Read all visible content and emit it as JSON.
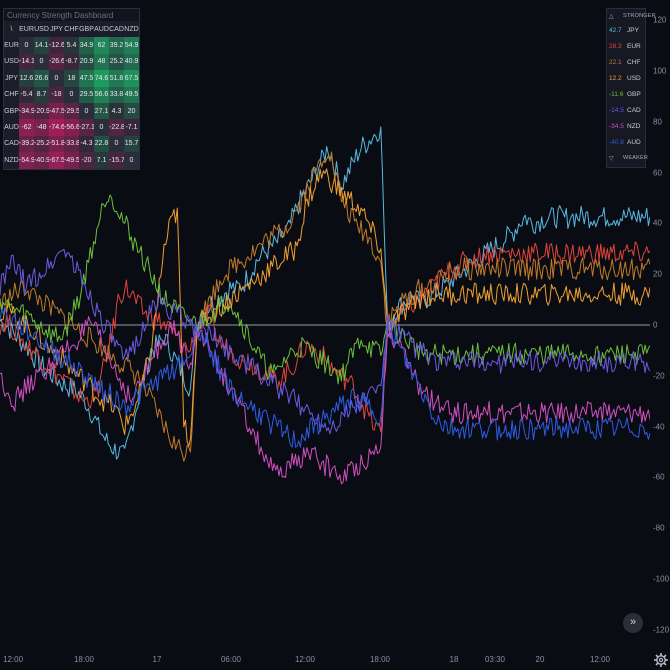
{
  "dashboard": {
    "title": "Currency Strength Dashboard",
    "corner": "\\",
    "currencies": [
      "EUR",
      "USD",
      "JPY",
      "CHF",
      "GBP",
      "AUD",
      "CAD",
      "NZD"
    ],
    "rows": [
      {
        "code": "EUR",
        "values": [
          "0",
          "14.1",
          "-12.6",
          "5.4",
          "34.9",
          "62",
          "39.2",
          "54.9"
        ]
      },
      {
        "code": "USD",
        "values": [
          "-14.1",
          "0",
          "-26.6",
          "-8.7",
          "20.9",
          "48",
          "25.2",
          "40.9"
        ]
      },
      {
        "code": "JPY",
        "values": [
          "12.6",
          "26.6",
          "0",
          "18",
          "47.5",
          "74.6",
          "51.8",
          "67.5"
        ]
      },
      {
        "code": "CHF",
        "values": [
          "-5.4",
          "8.7",
          "-18",
          "0",
          "29.5",
          "56.6",
          "33.8",
          "49.5"
        ]
      },
      {
        "code": "GBP",
        "values": [
          "-34.9",
          "-20.9",
          "-47.5",
          "-29.5",
          "0",
          "27.1",
          "4.3",
          "20"
        ]
      },
      {
        "code": "AUD",
        "values": [
          "-62",
          "-48",
          "-74.6",
          "-56.6",
          "-27.1",
          "0",
          "-22.8",
          "-7.1"
        ]
      },
      {
        "code": "CAD",
        "values": [
          "-39.2",
          "-25.2",
          "-51.8",
          "-33.8",
          "-4.3",
          "22.8",
          "0",
          "15.7"
        ]
      },
      {
        "code": "NZD",
        "values": [
          "-54.9",
          "-40.9",
          "-67.5",
          "-49.5",
          "-20",
          "7.1",
          "-15.7",
          "0"
        ]
      }
    ]
  },
  "legend": {
    "top_tri": "△",
    "top_label": "STRONGER",
    "bottom_tri": "▽",
    "bottom_label": "WEAKER",
    "rows": [
      {
        "value": "42.7",
        "code": "JPY",
        "color": "#5ab8e0"
      },
      {
        "value": "28.3",
        "code": "EUR",
        "color": "#e0443a"
      },
      {
        "value": "22.1",
        "code": "CHF",
        "color": "#c07a2a"
      },
      {
        "value": "12.2",
        "code": "USD",
        "color": "#f0a030"
      },
      {
        "value": "-11.6",
        "code": "GBP",
        "color": "#6cbf3a"
      },
      {
        "value": "-14.5",
        "code": "CAD",
        "color": "#6a5ae0"
      },
      {
        "value": "-34.5",
        "code": "NZD",
        "color": "#d050c0"
      },
      {
        "value": "-40.8",
        "code": "AUD",
        "color": "#2f5ce0"
      }
    ]
  },
  "price_scale": {
    "labels": [
      "120",
      "100",
      "80",
      "60",
      "40",
      "20",
      "0",
      "-20",
      "-40",
      "-60",
      "-80",
      "-100",
      "-120"
    ]
  },
  "time_axis": {
    "labels": [
      "12:00",
      "18:00",
      "17",
      "06:00",
      "12:00",
      "18:00",
      "18",
      "03:30",
      "20",
      "12:00"
    ]
  },
  "controls": {
    "scroll_label": "»",
    "settings_icon": "gear-icon"
  },
  "chart_data": {
    "type": "line",
    "ylim": [
      -128,
      128
    ],
    "x_count": 100,
    "session_resets": [
      29,
      58,
      87
    ],
    "series": [
      {
        "name": "JPY",
        "color": "#5ab8e0",
        "values": [
          2,
          0,
          -3,
          -6,
          -8,
          -12,
          -15,
          -18,
          -20,
          -22,
          -24,
          -25,
          -27,
          -30,
          -35,
          -40,
          -45,
          -48,
          -50,
          -52,
          -40,
          -30,
          -20,
          -10,
          -8,
          -5,
          -10,
          -15,
          -20,
          -25,
          0,
          5,
          8,
          10,
          12,
          15,
          14,
          16,
          20,
          25,
          28,
          30,
          32,
          35,
          38,
          45,
          50,
          55,
          60,
          65,
          70,
          62,
          55,
          60,
          65,
          70,
          72,
          75,
          78,
          0,
          5,
          8,
          10,
          12,
          8,
          10,
          12,
          14,
          16,
          18,
          20,
          22,
          24,
          26,
          28,
          30,
          32,
          34,
          36,
          40,
          42.7,
          40,
          41,
          42,
          42.5,
          42.7,
          42,
          42.7,
          42.7,
          42.7,
          42.7,
          42.7,
          42.7,
          42.7,
          42.7,
          42.7,
          42.7,
          42.7,
          42.7,
          42.7
        ]
      },
      {
        "name": "EUR",
        "color": "#e0443a",
        "values": [
          0,
          2,
          -2,
          -5,
          -8,
          -10,
          -12,
          -15,
          -18,
          -20,
          -22,
          -25,
          -28,
          -30,
          -28,
          -25,
          -15,
          -5,
          10,
          15,
          12,
          8,
          5,
          3,
          2,
          0,
          -2,
          -5,
          -8,
          -10,
          0,
          2,
          4,
          -5,
          -8,
          -10,
          -12,
          -14,
          -15,
          -16,
          -18,
          -20,
          -22,
          -20,
          -18,
          -15,
          -10,
          -8,
          -10,
          -12,
          -15,
          -18,
          -20,
          -22,
          -25,
          -30,
          -35,
          -40,
          -42,
          0,
          2,
          4,
          6,
          8,
          10,
          12,
          15,
          18,
          20,
          22,
          24,
          25,
          26,
          27,
          28,
          28.3,
          28,
          28.3,
          28.3,
          28.3,
          28.3,
          28.3,
          28.3,
          28.3,
          28.3,
          28.3,
          28.3,
          28.3,
          28.3,
          28.3,
          28.3,
          28.3,
          28.3,
          28.3,
          28.3,
          28.3,
          28.3,
          28.3,
          28.3,
          28.3
        ]
      },
      {
        "name": "CHF",
        "color": "#c07a2a",
        "values": [
          8,
          10,
          12,
          14,
          15,
          12,
          10,
          8,
          6,
          4,
          2,
          0,
          -2,
          -4,
          -6,
          -8,
          -10,
          -12,
          -14,
          -16,
          -18,
          -20,
          -25,
          -30,
          -35,
          -40,
          -45,
          -48,
          -50,
          -50,
          0,
          5,
          10,
          15,
          20,
          22,
          24,
          26,
          28,
          30,
          32,
          34,
          36,
          38,
          40,
          45,
          50,
          55,
          60,
          65,
          70,
          60,
          50,
          45,
          40,
          38,
          35,
          30,
          25,
          0,
          5,
          8,
          10,
          12,
          14,
          15,
          16,
          18,
          20,
          21,
          22,
          22.1,
          22,
          22.1,
          22.1,
          22.1,
          22.1,
          22.1,
          22.1,
          22.1,
          22.1,
          22.1,
          22.1,
          22.1,
          22.1,
          22.1,
          22.1,
          22.1,
          22.1,
          22.1,
          22.1,
          22.1,
          22.1,
          22.1,
          22.1,
          22.1,
          22.1,
          22.1,
          22.1,
          22.1
        ]
      },
      {
        "name": "USD",
        "color": "#f0a030",
        "values": [
          5,
          6,
          4,
          2,
          0,
          -2,
          -5,
          -8,
          -10,
          -12,
          -15,
          -18,
          -20,
          -22,
          -25,
          -28,
          -30,
          -32,
          -35,
          -40,
          -35,
          -30,
          -20,
          -10,
          10,
          30,
          40,
          45,
          -40,
          -45,
          0,
          2,
          4,
          6,
          8,
          10,
          12,
          14,
          16,
          18,
          20,
          22,
          24,
          26,
          28,
          30,
          40,
          50,
          55,
          60,
          58,
          55,
          52,
          50,
          48,
          45,
          40,
          35,
          30,
          0,
          2,
          4,
          6,
          8,
          10,
          11,
          12,
          12.2,
          12,
          12.2,
          12.2,
          12.2,
          12.2,
          12.2,
          12.2,
          12.2,
          12.2,
          12.2,
          12.2,
          12.2,
          12.2,
          12.2,
          12.2,
          12.2,
          12.2,
          12.2,
          12.2,
          12.2,
          12.2,
          12.2,
          12.2,
          12.2,
          12.2,
          12.2,
          12.2,
          12.2,
          12.2,
          12.2,
          12.2,
          12.2
        ]
      },
      {
        "name": "GBP",
        "color": "#6cbf3a",
        "values": [
          10,
          8,
          6,
          5,
          4,
          2,
          0,
          -2,
          -4,
          -5,
          -2,
          5,
          10,
          20,
          30,
          40,
          50,
          52,
          45,
          40,
          35,
          30,
          25,
          20,
          15,
          10,
          8,
          5,
          3,
          2,
          0,
          2,
          4,
          6,
          8,
          10,
          5,
          0,
          -5,
          -10,
          -15,
          -18,
          -20,
          -15,
          -12,
          -10,
          -8,
          -10,
          -12,
          -14,
          -16,
          -18,
          -20,
          -15,
          -10,
          -5,
          -8,
          -10,
          -12,
          0,
          -2,
          -4,
          -6,
          -8,
          -10,
          -11,
          -11.6,
          -11.6,
          -11.6,
          -11.6,
          -11.6,
          -11.6,
          -11.6,
          -11.6,
          -11.6,
          -11.6,
          -11.6,
          -11.6,
          -11.6,
          -11.6,
          -11.6,
          -11.6,
          -11.6,
          -11.6,
          -11.6,
          -11.6,
          -11.6,
          -11.6,
          -11.6,
          -11.6,
          -11.6,
          -11.6,
          -11.6,
          -11.6,
          -11.6,
          -11.6,
          -11.6,
          -11.6,
          -11.6,
          -11.6
        ]
      },
      {
        "name": "CAD",
        "color": "#6a5ae0",
        "values": [
          15,
          20,
          25,
          20,
          15,
          18,
          20,
          22,
          25,
          28,
          30,
          25,
          20,
          15,
          10,
          5,
          0,
          -5,
          -10,
          -15,
          -10,
          -5,
          0,
          5,
          10,
          8,
          6,
          4,
          2,
          0,
          0,
          -2,
          -4,
          -6,
          -8,
          -10,
          -12,
          -14,
          -16,
          -18,
          -20,
          -22,
          -24,
          -26,
          -28,
          -30,
          -32,
          -34,
          -36,
          -38,
          -40,
          -38,
          -36,
          -34,
          -32,
          -30,
          -28,
          -26,
          -24,
          0,
          -2,
          -4,
          -6,
          -8,
          -10,
          -12,
          -14,
          -14.5,
          -14.5,
          -14.5,
          -14.5,
          -14.5,
          -14.5,
          -14.5,
          -14.5,
          -14.5,
          -14.5,
          -14.5,
          -14.5,
          -14.5,
          -14.5,
          -14.5,
          -14.5,
          -14.5,
          -14.5,
          -14.5,
          -14.5,
          -14.5,
          -14.5,
          -14.5,
          -14.5,
          -14.5,
          -14.5,
          -14.5,
          -14.5,
          -14.5,
          -14.5,
          -14.5,
          -14.5,
          -14.5
        ]
      },
      {
        "name": "NZD",
        "color": "#d050c0",
        "values": [
          -20,
          -25,
          -30,
          -28,
          -25,
          -22,
          -20,
          -18,
          -15,
          -12,
          -10,
          -8,
          -5,
          -2,
          0,
          -5,
          -10,
          -15,
          -20,
          -25,
          -30,
          -25,
          -20,
          -15,
          -10,
          -5,
          0,
          -5,
          -10,
          -15,
          0,
          -5,
          -10,
          -15,
          -20,
          -25,
          -30,
          -35,
          -40,
          -45,
          -50,
          -55,
          -60,
          -58,
          -56,
          -54,
          -52,
          -50,
          -52,
          -54,
          -56,
          -58,
          -60,
          -58,
          -56,
          -54,
          -52,
          -50,
          -48,
          0,
          -5,
          -10,
          -15,
          -20,
          -25,
          -28,
          -30,
          -32,
          -34,
          -34.5,
          -34.5,
          -34.5,
          -34.5,
          -34.5,
          -34.5,
          -34.5,
          -34.5,
          -34.5,
          -34.5,
          -34.5,
          -34.5,
          -34.5,
          -34.5,
          -34.5,
          -34.5,
          -34.5,
          -34.5,
          -34.5,
          -34.5,
          -34.5,
          -34.5,
          -34.5,
          -34.5,
          -34.5,
          -34.5,
          -34.5,
          -34.5,
          -34.5,
          -34.5,
          -34.5
        ]
      },
      {
        "name": "AUD",
        "color": "#2f5ce0",
        "values": [
          5,
          4,
          2,
          0,
          -2,
          -4,
          -6,
          -8,
          -10,
          -12,
          -14,
          -16,
          -18,
          -20,
          -22,
          -24,
          -26,
          -28,
          -30,
          -32,
          -30,
          -28,
          -26,
          -24,
          -22,
          -20,
          -18,
          -16,
          -14,
          -12,
          0,
          -5,
          -10,
          -15,
          -20,
          -25,
          -28,
          -30,
          -32,
          -34,
          -36,
          -38,
          -40,
          -42,
          -44,
          -46,
          -44,
          -42,
          -40,
          -38,
          -36,
          -34,
          -32,
          -30,
          -28,
          -30,
          -32,
          -34,
          -36,
          0,
          -5,
          -10,
          -15,
          -20,
          -25,
          -30,
          -35,
          -38,
          -40,
          -40.8,
          -40.8,
          -40.8,
          -40.8,
          -40.8,
          -40.8,
          -40.8,
          -40.8,
          -40.8,
          -40.8,
          -40.8,
          -40.8,
          -40.8,
          -40.8,
          -40.8,
          -40.8,
          -40.8,
          -40.8,
          -40.8,
          -40.8,
          -40.8,
          -40.8,
          -40.8,
          -40.8,
          -40.8,
          -40.8,
          -40.8,
          -40.8,
          -40.8,
          -40.8,
          -40.8
        ]
      }
    ]
  }
}
